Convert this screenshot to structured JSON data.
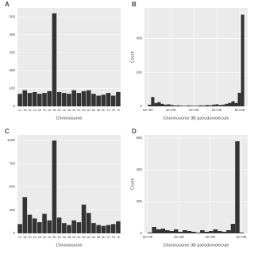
{
  "chart_data": [
    {
      "type": "bar",
      "panel": "A",
      "x_label": "Chromosome",
      "categories": [
        "1A",
        "1B",
        "1D",
        "2A",
        "2B",
        "2D",
        "3A",
        "3B",
        "3D",
        "4A",
        "4B",
        "4D",
        "5A",
        "5B",
        "5D",
        "6A",
        "6B",
        "6D",
        "7A",
        "7B",
        "7D"
      ],
      "values": [
        70,
        90,
        75,
        80,
        70,
        75,
        85,
        520,
        80,
        75,
        70,
        90,
        75,
        85,
        90,
        70,
        60,
        65,
        75,
        60,
        80
      ],
      "color": "#333333",
      "ylim": [
        0,
        550
      ],
      "yticks": [
        0,
        100,
        200,
        300,
        400,
        500
      ],
      "grid": true
    },
    {
      "type": "histogram",
      "panel": "B",
      "x_label": "Chromosome 3B pseudomolecule",
      "y_label": "Count",
      "bins": [
        0,
        28000000,
        56000000,
        84000000,
        112000000,
        140000000,
        168000000,
        196000000,
        224000000,
        252000000,
        280000000,
        308000000,
        336000000,
        364000000,
        392000000,
        420000000,
        448000000,
        476000000,
        504000000,
        532000000,
        560000000,
        588000000,
        616000000,
        644000000,
        672000000,
        700000000,
        728000000,
        756000000,
        784000000,
        812000000,
        840000000
      ],
      "values": [
        10,
        55,
        20,
        25,
        15,
        10,
        12,
        8,
        5,
        6,
        4,
        3,
        5,
        4,
        3,
        4,
        6,
        5,
        8,
        6,
        10,
        12,
        8,
        10,
        15,
        20,
        30,
        20,
        80,
        540
      ],
      "color": "#333333",
      "xlim": [
        -30000000,
        870000000
      ],
      "ylim": [
        0,
        580
      ],
      "yticks": [
        0,
        200,
        400
      ],
      "xticks": [
        {
          "value": 0,
          "label": "0e+00"
        },
        {
          "value": 200000000,
          "label": "2e+08"
        },
        {
          "value": 400000000,
          "label": "4e+08"
        },
        {
          "value": 600000000,
          "label": "6e+08"
        },
        {
          "value": 800000000,
          "label": "8e+08"
        }
      ],
      "grid": true
    },
    {
      "type": "bar",
      "panel": "C",
      "x_label": "Chromosome",
      "categories": [
        "1A",
        "1B",
        "1D",
        "2A",
        "2B",
        "2D",
        "3A",
        "3B",
        "3D",
        "4A",
        "4B",
        "4D",
        "5A",
        "5B",
        "5D",
        "6A",
        "6B",
        "6D",
        "7A",
        "7B",
        "7D"
      ],
      "values": [
        100,
        390,
        200,
        160,
        120,
        210,
        140,
        1000,
        170,
        110,
        90,
        140,
        120,
        310,
        220,
        110,
        90,
        80,
        90,
        100,
        130
      ],
      "color": "#333333",
      "ylim": [
        0,
        1060
      ],
      "yticks": [
        0,
        250,
        500,
        750,
        1000
      ],
      "grid": true
    },
    {
      "type": "histogram",
      "panel": "D",
      "x_label": "Chromosome 3B pseudomolecule",
      "y_label": "Count",
      "bins": [
        0,
        28000000,
        56000000,
        84000000,
        112000000,
        140000000,
        168000000,
        196000000,
        224000000,
        252000000,
        280000000,
        308000000,
        336000000,
        364000000,
        392000000,
        420000000,
        448000000,
        476000000,
        504000000,
        532000000,
        560000000,
        588000000,
        616000000
      ],
      "values": [
        5,
        40,
        25,
        30,
        20,
        15,
        25,
        10,
        20,
        15,
        10,
        5,
        20,
        10,
        15,
        25,
        15,
        10,
        20,
        60,
        580,
        5
      ],
      "color": "#333333",
      "xlim": [
        -20000000,
        640000000
      ],
      "ylim": [
        0,
        620
      ],
      "yticks": [
        0,
        200,
        400,
        600
      ],
      "xticks": [
        {
          "value": 0,
          "label": "0e+00"
        },
        {
          "value": 200000000,
          "label": "2e+08"
        },
        {
          "value": 400000000,
          "label": "4e+08"
        },
        {
          "value": 600000000,
          "label": "6e+08"
        }
      ],
      "grid": true
    }
  ]
}
